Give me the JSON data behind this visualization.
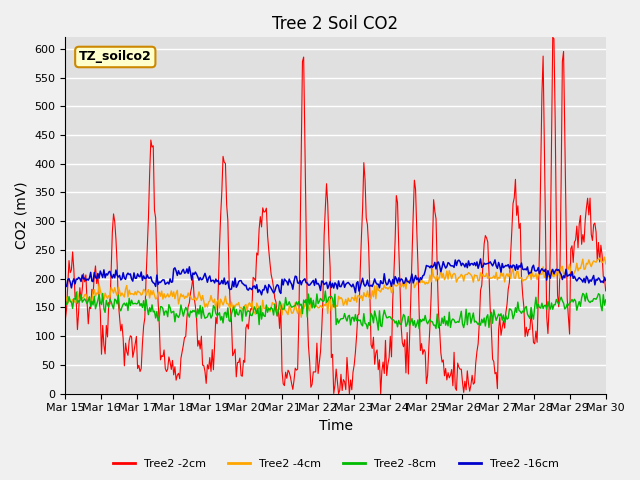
{
  "title": "Tree 2 Soil CO2",
  "xlabel": "Time",
  "ylabel": "CO2 (mV)",
  "ylim": [
    0,
    620
  ],
  "yticks": [
    0,
    50,
    100,
    150,
    200,
    250,
    300,
    350,
    400,
    450,
    500,
    550,
    600
  ],
  "xtick_labels": [
    "Mar 15",
    "Mar 16",
    "Mar 17",
    "Mar 18",
    "Mar 19",
    "Mar 20",
    "Mar 21",
    "Mar 22",
    "Mar 23",
    "Mar 24",
    "Mar 25",
    "Mar 26",
    "Mar 27",
    "Mar 28",
    "Mar 29",
    "Mar 30"
  ],
  "legend_labels": [
    "Tree2 -2cm",
    "Tree2 -4cm",
    "Tree2 -8cm",
    "Tree2 -16cm"
  ],
  "line_colors": [
    "#ff0000",
    "#ffa500",
    "#00bb00",
    "#0000cc"
  ],
  "annotation_text": "TZ_soilco2",
  "annotation_bg": "#ffffcc",
  "annotation_border": "#cc8800",
  "plot_bg_color": "#e0e0e0",
  "fig_bg_color": "#f0f0f0",
  "grid_color": "#ffffff",
  "title_fontsize": 12,
  "axis_label_fontsize": 10,
  "tick_fontsize": 8
}
